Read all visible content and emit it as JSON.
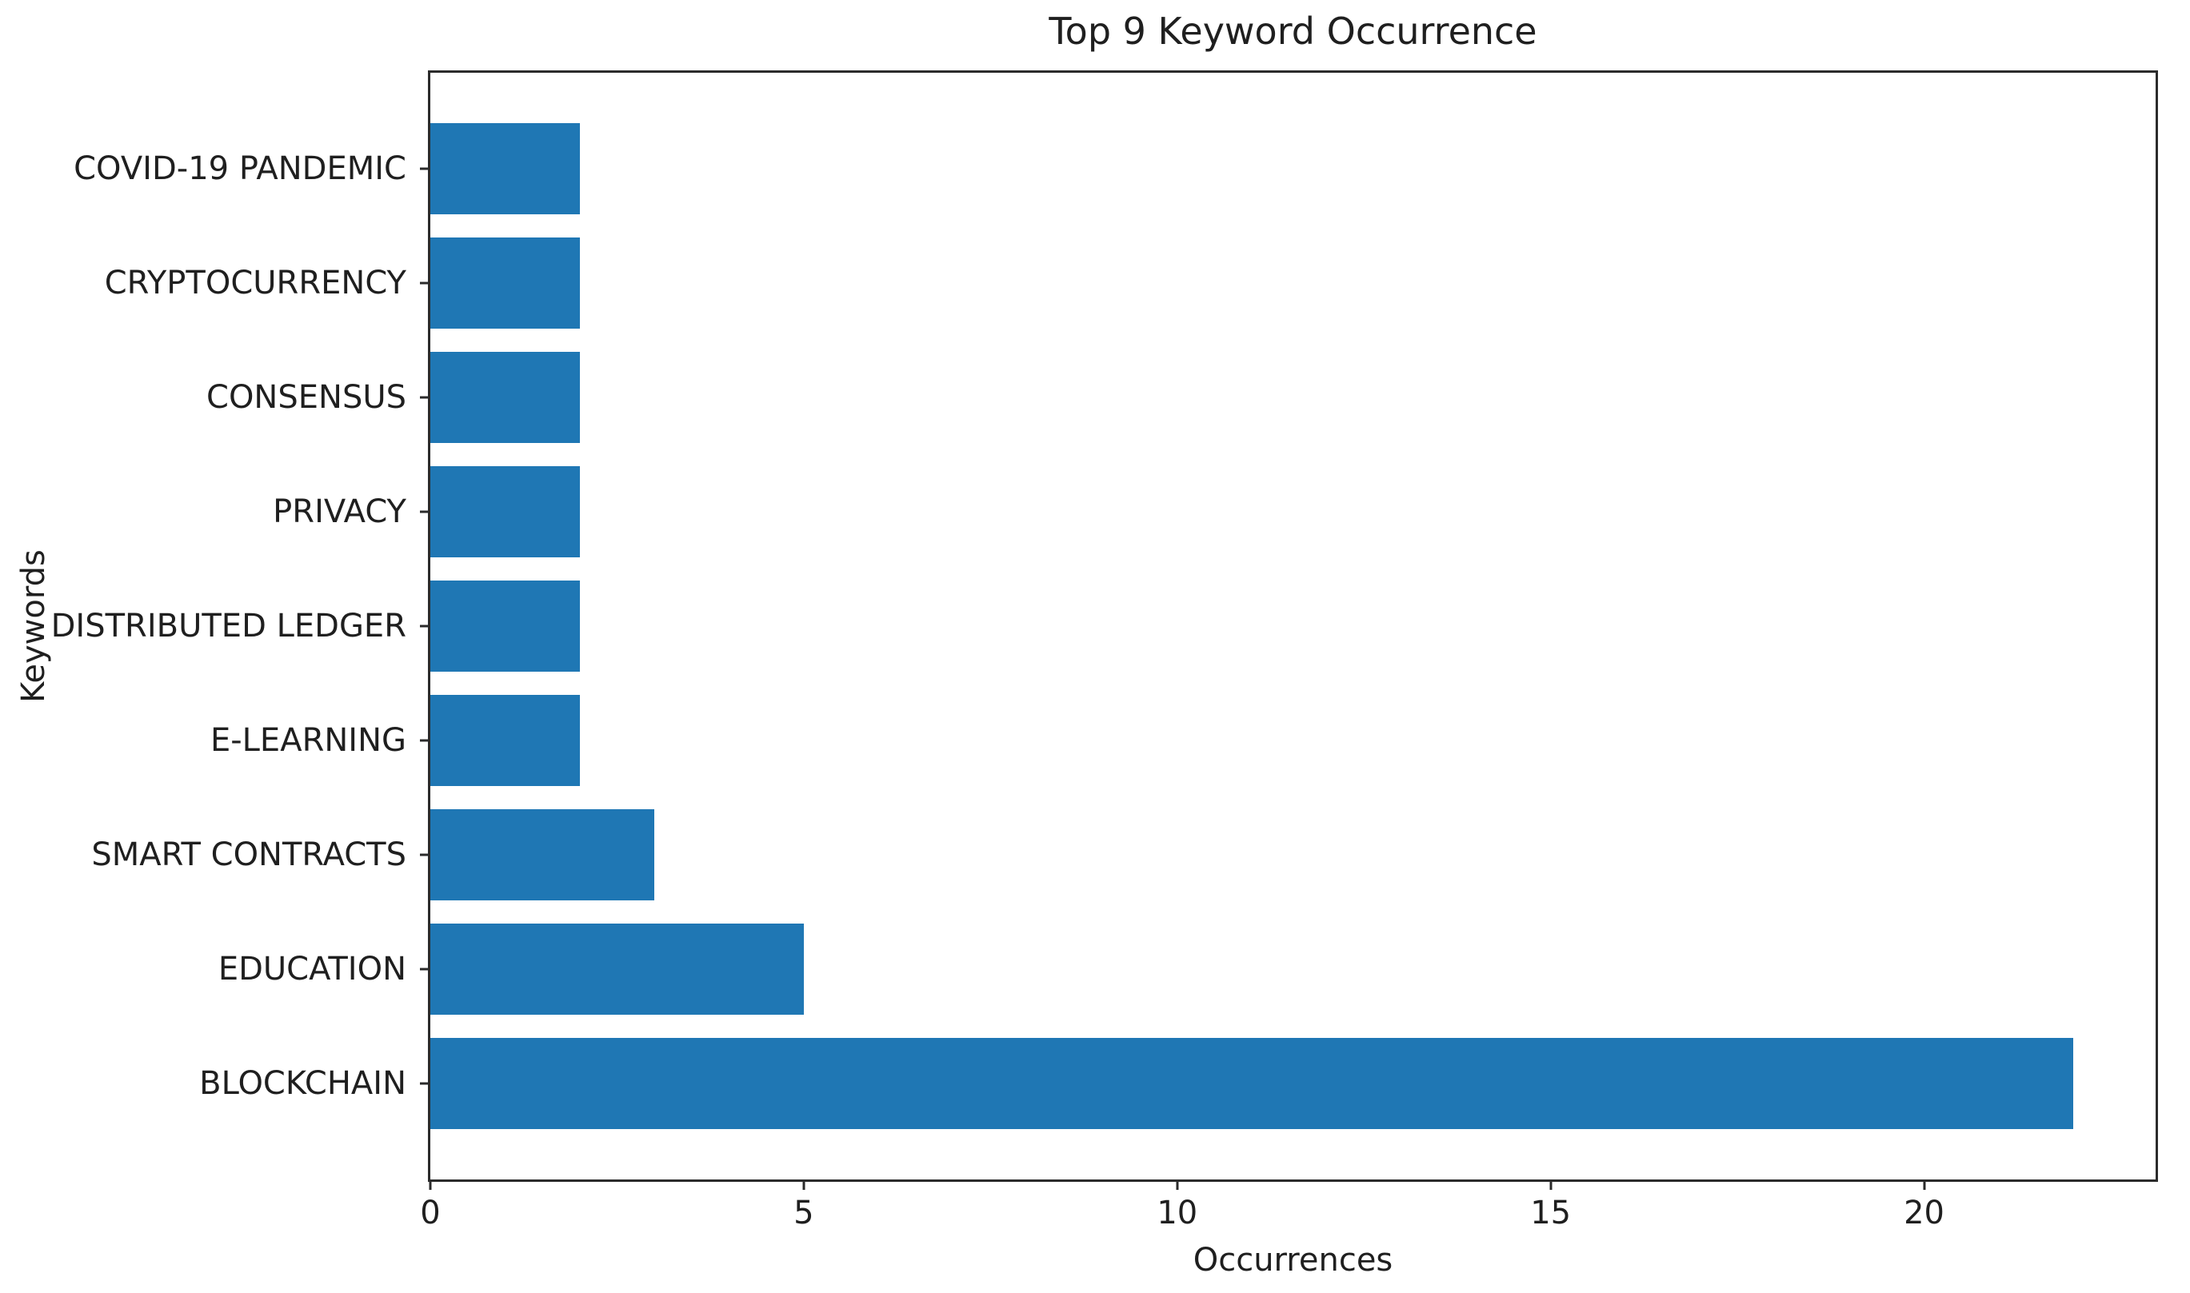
{
  "chart_data": {
    "type": "bar",
    "orientation": "horizontal",
    "title": "Top 9 Keyword Occurrence",
    "xlabel": "Occurrences",
    "ylabel": "Keywords",
    "categories": [
      "COVID-19 PANDEMIC",
      "CRYPTOCURRENCY",
      "CONSENSUS",
      "PRIVACY",
      "DISTRIBUTED LEDGER",
      "E-LEARNING",
      "SMART CONTRACTS",
      "EDUCATION",
      "BLOCKCHAIN"
    ],
    "values": [
      2,
      2,
      2,
      2,
      2,
      2,
      3,
      5,
      22
    ],
    "xticks": [
      0,
      5,
      10,
      15,
      20
    ],
    "xlim": [
      0,
      23.1
    ],
    "ylim": [
      -0.84,
      8.84
    ],
    "bar_height": 0.8,
    "bar_color": "#1f77b4",
    "grid": false,
    "legend": null
  }
}
